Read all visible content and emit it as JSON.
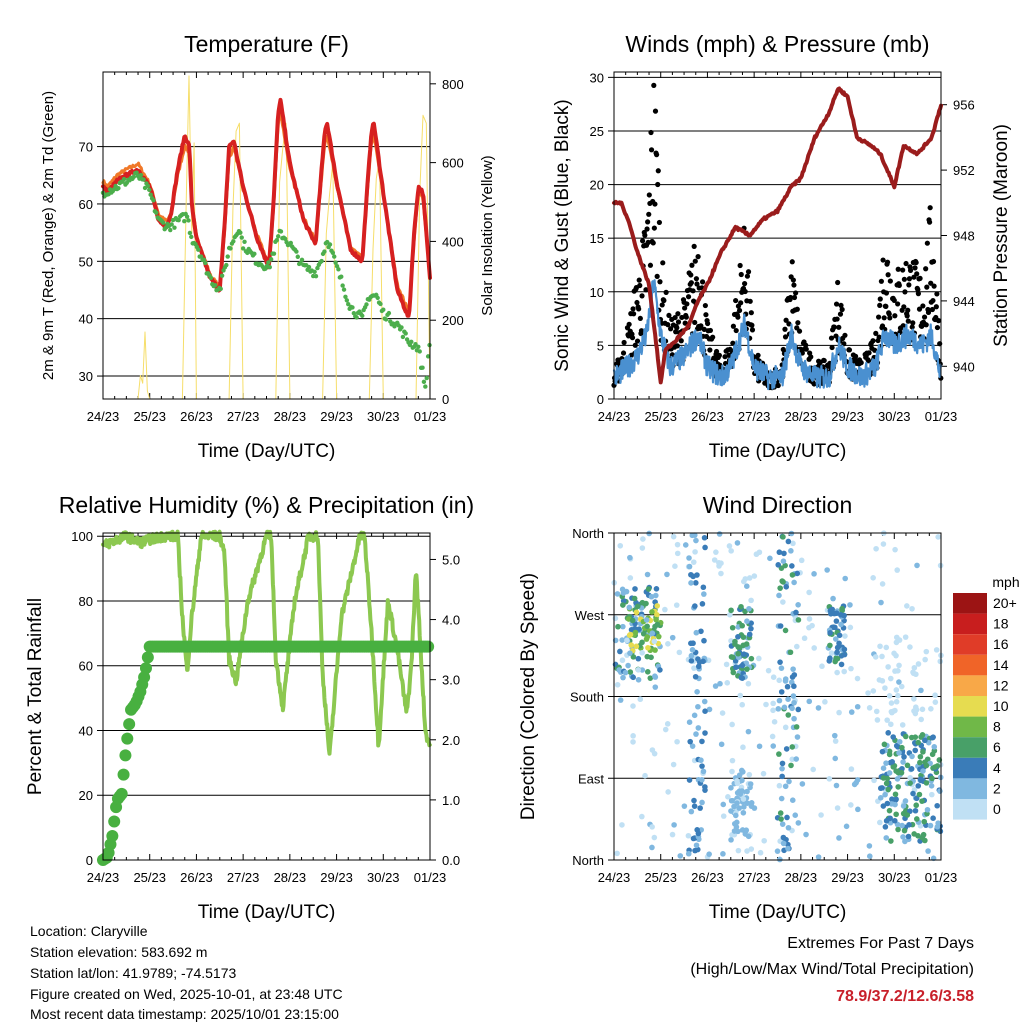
{
  "footer": {
    "location": "Location: Claryville",
    "elevation": "Station elevation: 583.692 m",
    "latlon": "Station lat/lon: 41.9789; -74.5173",
    "created": "Figure created on Wed, 2025-10-01, at 23:48 UTC",
    "recent": "Most recent data timestamp: 2025/10/01 23:15:00"
  },
  "extremes": {
    "title": "Extremes For Past 7 Days",
    "subtitle": "(High/Low/Max Wind/Total Precipitation)",
    "values": "78.9/37.2/12.6/3.58",
    "value_color": "#c8202a"
  },
  "chart_data": [
    {
      "id": "temperature",
      "type": "line",
      "title": "Temperature (F)",
      "xlabel": "Time (Day/UTC)",
      "ylabel": "2m & 9m T (Red, Orange) & 2m Td (Green)",
      "y2label": "Solar Insolation (Yellow)",
      "xticks": [
        "24/23",
        "25/23",
        "26/23",
        "27/23",
        "28/23",
        "29/23",
        "30/23",
        "01/23"
      ],
      "xlim": [
        0,
        7
      ],
      "ylim": [
        26,
        83
      ],
      "yticks": [
        30,
        40,
        50,
        60,
        70
      ],
      "y2lim": [
        0,
        830
      ],
      "y2ticks": [
        0,
        200,
        400,
        600,
        800
      ],
      "series": [
        {
          "name": "2m T",
          "color": "#d62020",
          "x": [
            0,
            0.1,
            0.3,
            0.5,
            0.75,
            1.0,
            1.2,
            1.35,
            1.45,
            1.6,
            1.75,
            1.85,
            1.9,
            2.0,
            2.3,
            2.5,
            2.6,
            2.7,
            2.8,
            3.0,
            3.3,
            3.55,
            3.65,
            3.75,
            3.8,
            4.0,
            4.3,
            4.55,
            4.65,
            4.75,
            4.8,
            5.0,
            5.3,
            5.55,
            5.65,
            5.75,
            5.8,
            6.0,
            6.3,
            6.55,
            6.65,
            6.75,
            6.85,
            7.0
          ],
          "values": [
            63,
            62,
            64,
            65,
            66,
            63,
            57,
            56,
            58,
            66,
            72,
            70,
            60,
            54,
            47,
            45,
            56,
            70,
            71,
            63,
            54,
            49,
            60,
            76,
            78,
            67,
            57,
            53,
            63,
            73,
            74,
            64,
            52,
            50,
            62,
            73,
            74,
            62,
            45,
            40,
            54,
            63,
            62,
            47
          ]
        },
        {
          "name": "9m T",
          "color": "#f07828",
          "x": [
            0,
            0.1,
            0.3,
            0.5,
            0.75,
            1.0,
            1.2,
            1.35,
            1.45,
            1.6,
            1.75,
            1.85,
            1.9,
            2.0,
            2.3,
            2.5,
            2.6,
            2.7,
            2.8,
            3.0,
            3.3,
            3.55,
            3.65,
            3.75,
            3.8,
            4.0,
            4.3,
            4.55,
            4.65,
            4.75,
            4.8,
            5.0,
            5.3,
            5.55,
            5.65,
            5.75,
            5.8,
            6.0,
            6.3,
            6.55,
            6.65,
            6.75,
            6.85,
            7.0
          ],
          "values": [
            64,
            63,
            65,
            66,
            67,
            63.5,
            58,
            57,
            58,
            65,
            70,
            69,
            60,
            54.5,
            47.5,
            45.5,
            55,
            68,
            70,
            62.5,
            54.5,
            49.5,
            59,
            74,
            76,
            66,
            57.5,
            53.5,
            62,
            71,
            72,
            63.5,
            52.5,
            50.5,
            61,
            71,
            72,
            61.5,
            46,
            41,
            53,
            62,
            61,
            47.5
          ]
        },
        {
          "name": "2m Td",
          "color": "#4cae4c",
          "x": [
            0,
            0.3,
            0.5,
            0.75,
            1.0,
            1.2,
            1.4,
            1.6,
            1.8,
            1.9,
            2.0,
            2.3,
            2.5,
            2.7,
            2.9,
            3.0,
            3.3,
            3.55,
            3.7,
            3.8,
            4.0,
            4.3,
            4.55,
            4.7,
            4.8,
            5.0,
            5.3,
            5.55,
            5.7,
            5.85,
            6.0,
            6.3,
            6.55,
            6.75,
            6.9,
            7.0
          ],
          "values": [
            62,
            63,
            64,
            65,
            62,
            57,
            56,
            57,
            58,
            54,
            53,
            47,
            45,
            52,
            56,
            53,
            50,
            49,
            53,
            55,
            53,
            49,
            48,
            51,
            54,
            49,
            42,
            40,
            44,
            44,
            41,
            39,
            36,
            35,
            28,
            36
          ]
        }
      ],
      "secondary_series": [
        {
          "name": "Solar Insolation",
          "color": "#f6de6a",
          "x": [
            0.75,
            0.8,
            0.85,
            0.9,
            0.95,
            1.0,
            1.7,
            1.78,
            1.84,
            1.9,
            1.95,
            2.0,
            2.7,
            2.78,
            2.85,
            2.92,
            3.0,
            3.7,
            3.78,
            3.85,
            3.92,
            4.0,
            4.7,
            4.78,
            4.85,
            4.92,
            5.0,
            5.7,
            5.78,
            5.85,
            5.92,
            6.0,
            6.7,
            6.78,
            6.85,
            6.92,
            7.0
          ],
          "values": [
            0,
            60,
            40,
            170,
            20,
            0,
            0,
            500,
            820,
            420,
            650,
            0,
            0,
            480,
            680,
            700,
            0,
            0,
            550,
            640,
            700,
            0,
            0,
            420,
            520,
            600,
            0,
            0,
            380,
            560,
            610,
            0,
            0,
            520,
            720,
            700,
            0
          ]
        }
      ]
    },
    {
      "id": "winds",
      "type": "line",
      "title": "Winds (mph) & Pressure (mb)",
      "xlabel": "Time (Day/UTC)",
      "ylabel": "Sonic Wind & Gust (Blue, Black)",
      "y2label": "Station Pressure (Maroon)",
      "xticks": [
        "24/23",
        "25/23",
        "26/23",
        "27/23",
        "28/23",
        "29/23",
        "30/23",
        "01/23"
      ],
      "xlim": [
        0,
        7
      ],
      "ylim": [
        0,
        30.5
      ],
      "yticks": [
        0,
        5,
        10,
        15,
        20,
        25,
        30
      ],
      "y2lim": [
        938,
        958
      ],
      "y2ticks": [
        940,
        944,
        948,
        952,
        956
      ],
      "series": [
        {
          "name": "Sonic Wind",
          "color": "#4a90d0",
          "x": [
            0,
            0.3,
            0.5,
            0.7,
            0.85,
            1.0,
            1.2,
            1.5,
            1.8,
            2.0,
            2.3,
            2.5,
            2.8,
            3.0,
            3.3,
            3.6,
            3.8,
            4.0,
            4.3,
            4.6,
            4.8,
            5.0,
            5.3,
            5.6,
            5.8,
            6.0,
            6.3,
            6.6,
            6.8,
            7.0
          ],
          "values": [
            2,
            3,
            4,
            6,
            11,
            6,
            3,
            4,
            6,
            3,
            2,
            3,
            7,
            3,
            2,
            2,
            6,
            3,
            2,
            2,
            5,
            3,
            2,
            3,
            6,
            5,
            6,
            5,
            6,
            2
          ]
        },
        {
          "name": "Gust",
          "color": "#000000",
          "x": [
            0,
            0.3,
            0.5,
            0.7,
            0.85,
            0.95,
            1.0,
            1.2,
            1.5,
            1.8,
            2.0,
            2.3,
            2.5,
            2.8,
            3.0,
            3.3,
            3.6,
            3.8,
            4.0,
            4.3,
            4.6,
            4.8,
            5.0,
            5.3,
            5.6,
            5.8,
            6.0,
            6.3,
            6.6,
            6.8,
            7.0
          ],
          "values": [
            2,
            6,
            10,
            15,
            27,
            20,
            12,
            6,
            8,
            14,
            6,
            3,
            5,
            14,
            4,
            2,
            3,
            12,
            5,
            3,
            3,
            10,
            4,
            3,
            5,
            14,
            10,
            12,
            10,
            16,
            4
          ]
        }
      ],
      "secondary_series": [
        {
          "name": "Station Pressure",
          "color": "#9a1c1c",
          "x": [
            0,
            0.15,
            0.3,
            0.5,
            0.75,
            0.9,
            1.0,
            1.1,
            1.3,
            1.6,
            1.8,
            2.0,
            2.3,
            2.6,
            2.9,
            3.2,
            3.5,
            3.8,
            4.0,
            4.3,
            4.6,
            4.8,
            5.0,
            5.2,
            5.5,
            5.7,
            5.85,
            6.0,
            6.2,
            6.5,
            6.8,
            7.0
          ],
          "values": [
            950,
            950,
            949,
            947,
            945,
            941.5,
            939,
            941,
            941.5,
            942.5,
            944,
            945,
            947,
            948.5,
            948,
            949,
            949.5,
            951,
            951.5,
            954,
            955.5,
            957,
            956.5,
            954,
            953.5,
            953,
            952,
            951,
            953.5,
            953,
            954,
            956
          ]
        }
      ]
    },
    {
      "id": "humidity",
      "type": "line",
      "title": "Relative Humidity (%) & Precipitation (in)",
      "xlabel": "Time (Day/UTC)",
      "ylabel": "Percent & Total Rainfall",
      "xticks": [
        "24/23",
        "25/23",
        "26/23",
        "27/23",
        "28/23",
        "29/23",
        "30/23",
        "01/23"
      ],
      "xlim": [
        0,
        7
      ],
      "ylim": [
        0,
        101
      ],
      "yticks": [
        0,
        20,
        40,
        60,
        80,
        100
      ],
      "y2lim": [
        0,
        5.44
      ],
      "y2ticks": [
        "0.0",
        "1.0",
        "2.0",
        "3.0",
        "4.0",
        "5.0"
      ],
      "series": [
        {
          "name": "Relative Humidity",
          "color": "#8cc850",
          "x": [
            0,
            0.3,
            0.5,
            0.8,
            1.0,
            1.3,
            1.6,
            1.7,
            1.8,
            1.9,
            2.1,
            2.5,
            2.6,
            2.7,
            2.85,
            3.1,
            3.5,
            3.6,
            3.7,
            3.85,
            4.1,
            4.4,
            4.6,
            4.7,
            4.85,
            5.1,
            5.5,
            5.6,
            5.75,
            5.9,
            6.1,
            6.3,
            6.5,
            6.6,
            6.7,
            6.8,
            6.9,
            7.0
          ],
          "values": [
            97,
            99,
            100,
            98,
            99,
            100,
            100,
            75,
            58,
            75,
            100,
            100,
            95,
            62,
            55,
            80,
            100,
            100,
            62,
            47,
            80,
            100,
            100,
            58,
            32,
            75,
            100,
            100,
            70,
            35,
            80,
            65,
            45,
            60,
            90,
            65,
            40,
            35
          ]
        },
        {
          "name": "Total Precipitation",
          "color": "#48b040",
          "axis": "secondary",
          "x": [
            0,
            0.1,
            0.2,
            0.3,
            0.4,
            0.5,
            0.6,
            0.7,
            0.8,
            0.9,
            1.0,
            7.0
          ],
          "values": [
            0,
            0.05,
            0.4,
            1.0,
            1.1,
            1.9,
            2.5,
            2.6,
            2.8,
            3.1,
            3.55,
            3.55
          ]
        }
      ]
    },
    {
      "id": "direction",
      "type": "scatter",
      "title": "Wind Direction",
      "xlabel": "Time (Day/UTC)",
      "ylabel": "Direction (Colored By Speed)",
      "xticks": [
        "24/23",
        "25/23",
        "26/23",
        "27/23",
        "28/23",
        "29/23",
        "30/23",
        "01/23"
      ],
      "xlim": [
        0,
        7
      ],
      "ylim": [
        0,
        360
      ],
      "yticks": [
        "North",
        "East",
        "South",
        "West",
        "North"
      ],
      "legend": {
        "title": "mph",
        "labels": [
          "20+",
          "18",
          "16",
          "14",
          "12",
          "10",
          "8",
          "6",
          "4",
          "2",
          "0"
        ],
        "colors": [
          "#9c1414",
          "#c81e1e",
          "#e03c28",
          "#f06428",
          "#f8a848",
          "#e6dc50",
          "#70b848",
          "#48a068",
          "#3a7cb8",
          "#80b8e0",
          "#c0e0f4"
        ]
      },
      "clusters": [
        {
          "x": [
            0,
            1.0
          ],
          "dir": [
            200,
            300
          ],
          "speed": [
            2,
            8
          ],
          "n": 90
        },
        {
          "x": [
            0.3,
            1.0
          ],
          "dir": [
            230,
            280
          ],
          "speed": [
            6,
            12
          ],
          "n": 40
        },
        {
          "x": [
            0,
            7.0
          ],
          "dir": [
            0,
            360
          ],
          "speed": [
            0,
            3
          ],
          "n": 260
        },
        {
          "x": [
            1.6,
            1.95
          ],
          "dir": [
            0,
            360
          ],
          "speed": [
            2,
            6
          ],
          "n": 70
        },
        {
          "x": [
            2.5,
            2.95
          ],
          "dir": [
            200,
            280
          ],
          "speed": [
            3,
            8
          ],
          "n": 60
        },
        {
          "x": [
            2.5,
            2.95
          ],
          "dir": [
            20,
            100
          ],
          "speed": [
            1,
            4
          ],
          "n": 60
        },
        {
          "x": [
            3.5,
            3.95
          ],
          "dir": [
            0,
            360
          ],
          "speed": [
            2,
            7
          ],
          "n": 80
        },
        {
          "x": [
            4.6,
            4.95
          ],
          "dir": [
            210,
            280
          ],
          "speed": [
            3,
            7
          ],
          "n": 45
        },
        {
          "x": [
            5.7,
            7.0
          ],
          "dir": [
            20,
            140
          ],
          "speed": [
            3,
            8
          ],
          "n": 170
        },
        {
          "x": [
            5.6,
            7.0
          ],
          "dir": [
            140,
            250
          ],
          "speed": [
            0,
            2
          ],
          "n": 50
        }
      ]
    }
  ]
}
